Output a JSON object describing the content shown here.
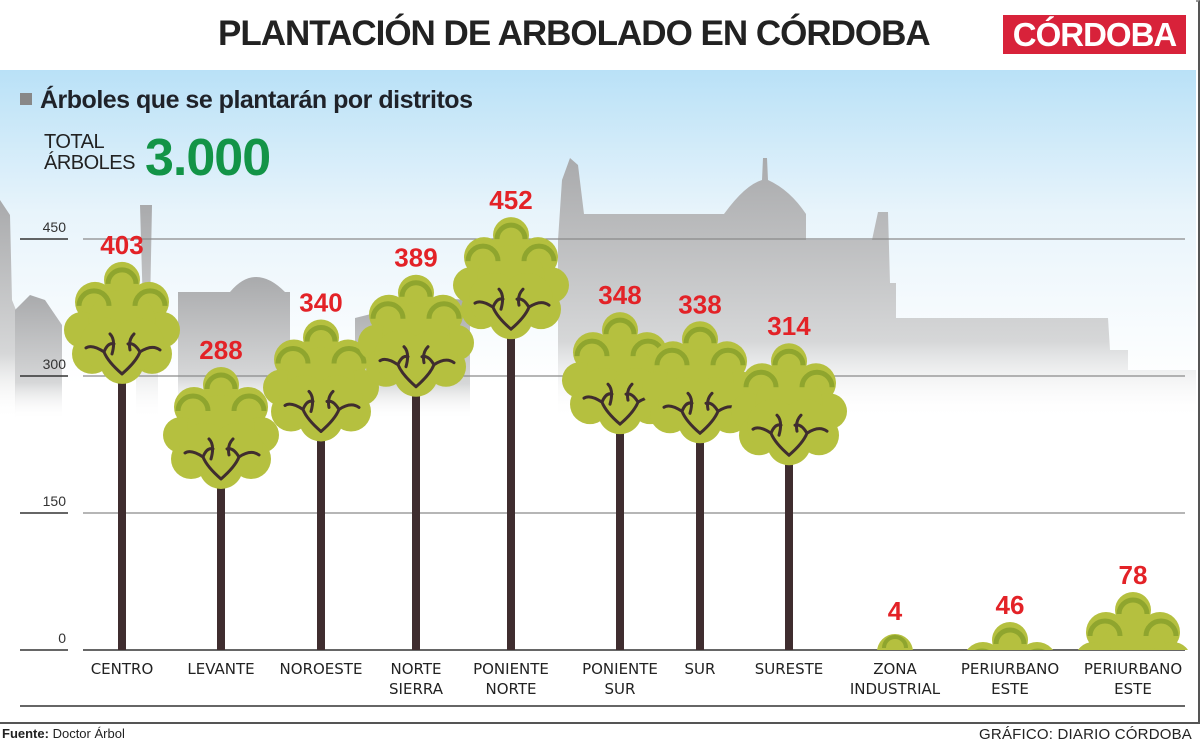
{
  "header": {
    "title": "PLANTACIÓN DE ARBOLADO EN CÓRDOBA",
    "logo": "CÓRDOBA"
  },
  "subtitle": "Árboles que se plantarán por distritos",
  "total": {
    "label_line1": "TOTAL",
    "label_line2": "ÁRBOLES",
    "value": "3.000"
  },
  "footer": {
    "source_label": "Fuente:",
    "source_value": "Doctor Árbol",
    "credit": "GRÁFICO: DIARIO CÓRDOBA"
  },
  "colors": {
    "foliage": "#b5c03f",
    "foliage_highlight": "#8fa52e",
    "trunk": "#3f2d2f",
    "value_label": "#e32227",
    "total_value": "#139447",
    "logo_bg": "#d8223a",
    "skyline": "#b7b8ba"
  },
  "chart_data": {
    "type": "bar",
    "title": "PLANTACIÓN DE ARBOLADO EN CÓRDOBA",
    "subtitle": "Árboles que se plantarán por distritos",
    "categories": [
      "CENTRO",
      "LEVANTE",
      "NOROESTE",
      "NORTE SIERRA",
      "PONIENTE NORTE",
      "PONIENTE SUR",
      "SUR",
      "SURESTE",
      "ZONA INDUSTRIAL",
      "PERIURBANO ESTE",
      "PERIURBANO ESTE"
    ],
    "label_lines": [
      [
        "CENTRO"
      ],
      [
        "LEVANTE"
      ],
      [
        "NOROESTE"
      ],
      [
        "NORTE",
        "SIERRA"
      ],
      [
        "PONIENTE",
        "NORTE"
      ],
      [
        "PONIENTE",
        "SUR"
      ],
      [
        "SUR"
      ],
      [
        "SURESTE"
      ],
      [
        "ZONA",
        "INDUSTRIAL"
      ],
      [
        "PERIURBANO",
        "ESTE"
      ],
      [
        "PERIURBANO",
        "ESTE"
      ]
    ],
    "values": [
      403,
      288,
      340,
      389,
      452,
      348,
      338,
      314,
      4,
      46,
      78
    ],
    "xlabel": "",
    "ylabel": "",
    "yticks": [
      0,
      150,
      300,
      450
    ],
    "ylim": [
      0,
      460
    ],
    "grid": true,
    "total": 3000
  }
}
